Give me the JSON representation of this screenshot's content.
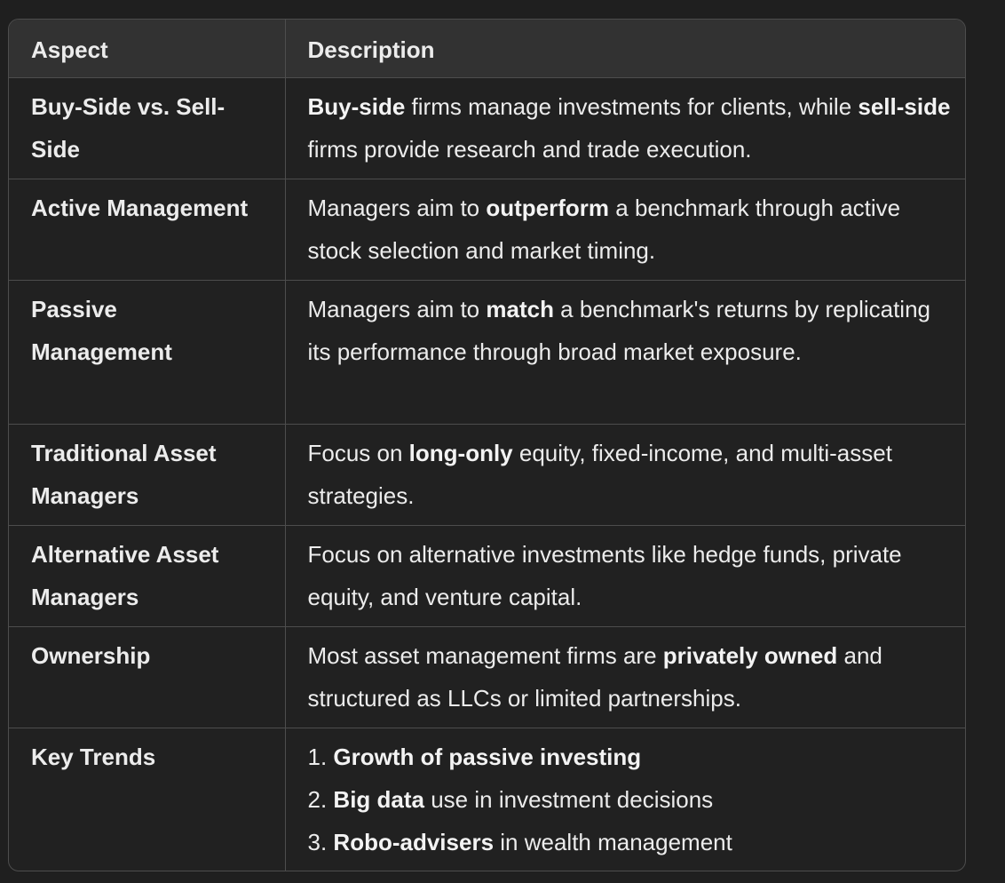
{
  "table": {
    "headers": {
      "aspect": "Aspect",
      "description": "Description"
    },
    "rows": [
      {
        "aspect": "Buy-Side vs. Sell-Side",
        "desc": [
          {
            "b": "Buy-side",
            "t": " firms manage investments for clients, while "
          },
          {
            "b": "sell-side",
            "t": " firms provide research and trade execution."
          }
        ]
      },
      {
        "aspect": "Active Management",
        "desc": [
          {
            "t": "Managers aim to "
          },
          {
            "b": "outperform",
            "t": " a benchmark through active stock selection and market timing."
          }
        ]
      },
      {
        "aspect": "Passive Management",
        "desc": [
          {
            "t": "Managers aim to "
          },
          {
            "b": "match",
            "t": " a benchmark's returns by replicating its performance through broad market exposure."
          }
        ]
      },
      {
        "aspect": "Traditional Asset Managers",
        "desc": [
          {
            "t": "Focus on "
          },
          {
            "b": "long-only",
            "t": " equity, fixed-income, and multi-asset strategies."
          }
        ]
      },
      {
        "aspect": "Alternative Asset Managers",
        "desc": [
          {
            "t": "Focus on alternative investments like hedge funds, private equity, and venture capital."
          }
        ]
      },
      {
        "aspect": "Ownership",
        "desc": [
          {
            "t": "Most asset management firms are "
          },
          {
            "b": "privately owned",
            "t": " and structured as LLCs or limited partnerships."
          }
        ]
      },
      {
        "aspect": "Key Trends",
        "trends": [
          {
            "n": "1. ",
            "b": "Growth of passive investing",
            "t": ""
          },
          {
            "n": "2. ",
            "b": "Big data",
            "t": " use in investment decisions"
          },
          {
            "n": "3. ",
            "b": "Robo-advisers",
            "t": " in wealth management"
          }
        ]
      }
    ]
  }
}
